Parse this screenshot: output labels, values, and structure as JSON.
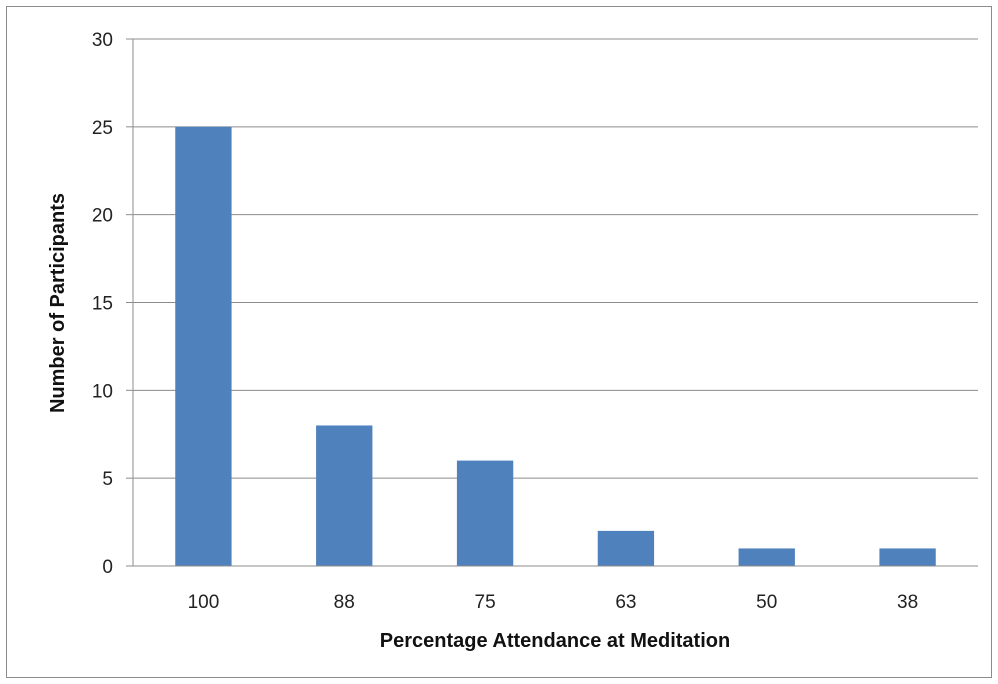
{
  "chart_data": {
    "type": "bar",
    "title": "",
    "xlabel": "Percentage Attendance at Meditation",
    "ylabel": "Number of Participants",
    "categories": [
      "100",
      "88",
      "75",
      "63",
      "50",
      "38"
    ],
    "values": [
      25,
      8,
      6,
      2,
      1,
      1
    ],
    "ylim": [
      0,
      30
    ],
    "yticks": [
      0,
      5,
      10,
      15,
      20,
      25,
      30
    ],
    "grid": true,
    "legend": "none",
    "bar_color": "#4f81bd",
    "grid_color": "#8c8c8c"
  }
}
